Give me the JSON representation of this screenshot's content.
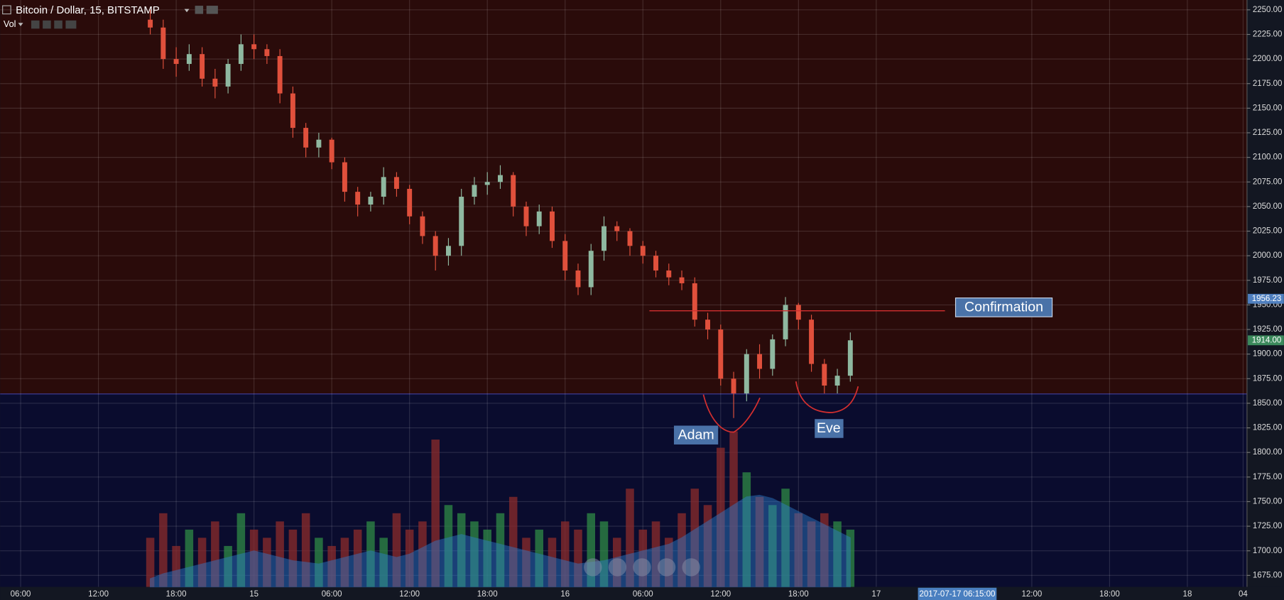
{
  "chart_data": {
    "type": "candlestick",
    "title": "Bitcoin / Dollar, 15, BITSTAMP",
    "volume_label": "Vol",
    "x": [
      16,
      17,
      18,
      19,
      20,
      21,
      22,
      23,
      24,
      25,
      26,
      27,
      28,
      29,
      30,
      31,
      32,
      33,
      34,
      35,
      36,
      37,
      38,
      39,
      40,
      41,
      42,
      43,
      44,
      45,
      46,
      47,
      48,
      49,
      50,
      51,
      52,
      53,
      54,
      55,
      56,
      57,
      58,
      59,
      60,
      61,
      62,
      63,
      64,
      65,
      66,
      67,
      68,
      69,
      70
    ],
    "open": [
      2240,
      2232,
      2200,
      2195,
      2205,
      2180,
      2172,
      2195,
      2215,
      2210,
      2203,
      2165,
      2130,
      2110,
      2118,
      2095,
      2065,
      2052,
      2060,
      2080,
      2068,
      2040,
      2020,
      2000,
      2010,
      2060,
      2072,
      2075,
      2082,
      2050,
      2030,
      2045,
      2015,
      1985,
      1968,
      2005,
      2030,
      2025,
      2010,
      2000,
      1985,
      1978,
      1972,
      1935,
      1925,
      1875,
      1860,
      1900,
      1885,
      1915,
      1950,
      1935,
      1890,
      1868,
      1878
    ],
    "high": [
      2250,
      2240,
      2212,
      2215,
      2212,
      2190,
      2200,
      2225,
      2225,
      2215,
      2210,
      2172,
      2135,
      2125,
      2120,
      2100,
      2070,
      2065,
      2090,
      2085,
      2072,
      2045,
      2025,
      2018,
      2068,
      2080,
      2085,
      2092,
      2085,
      2055,
      2052,
      2050,
      2022,
      1992,
      2012,
      2040,
      2035,
      2028,
      2015,
      2005,
      1992,
      1985,
      1978,
      1942,
      1930,
      1882,
      1905,
      1910,
      1920,
      1958,
      1952,
      1940,
      1895,
      1885,
      1922
    ],
    "low": [
      2225,
      2190,
      2182,
      2188,
      2172,
      2160,
      2165,
      2188,
      2200,
      2195,
      2155,
      2120,
      2100,
      2100,
      2088,
      2055,
      2040,
      2045,
      2052,
      2060,
      2032,
      2012,
      1985,
      1990,
      2000,
      2052,
      2062,
      2068,
      2040,
      2020,
      2022,
      2008,
      1975,
      1960,
      1960,
      1995,
      2015,
      2000,
      1992,
      1978,
      1970,
      1965,
      1928,
      1915,
      1868,
      1835,
      1852,
      1875,
      1878,
      1908,
      1925,
      1882,
      1860,
      1860,
      1872
    ],
    "close": [
      2232,
      2200,
      2195,
      2205,
      2180,
      2172,
      2195,
      2215,
      2210,
      2203,
      2165,
      2130,
      2110,
      2118,
      2095,
      2065,
      2052,
      2060,
      2080,
      2068,
      2040,
      2020,
      2000,
      2010,
      2060,
      2072,
      2075,
      2082,
      2050,
      2030,
      2045,
      2015,
      1985,
      1968,
      2005,
      2030,
      2025,
      2010,
      2000,
      1985,
      1978,
      1972,
      1935,
      1925,
      1875,
      1860,
      1900,
      1885,
      1915,
      1950,
      1935,
      1890,
      1868,
      1878,
      1914
    ],
    "volume": [
      30,
      45,
      25,
      35,
      30,
      40,
      25,
      45,
      35,
      30,
      40,
      35,
      45,
      30,
      25,
      30,
      35,
      40,
      30,
      45,
      35,
      40,
      90,
      50,
      45,
      40,
      35,
      45,
      55,
      30,
      35,
      30,
      40,
      35,
      45,
      40,
      30,
      60,
      35,
      40,
      30,
      45,
      60,
      50,
      85,
      95,
      70,
      55,
      50,
      60,
      45,
      40,
      45,
      40,
      35
    ],
    "volume_ma": [
      5,
      8,
      10,
      12,
      14,
      16,
      18,
      20,
      22,
      20,
      18,
      16,
      15,
      14,
      16,
      18,
      20,
      22,
      20,
      18,
      20,
      24,
      28,
      30,
      32,
      30,
      28,
      26,
      24,
      22,
      20,
      18,
      16,
      14,
      15,
      16,
      18,
      20,
      22,
      24,
      26,
      30,
      35,
      40,
      45,
      50,
      55,
      56,
      54,
      50,
      46,
      42,
      38,
      34,
      30
    ],
    "vlim": [
      0,
      100
    ],
    "up_color": "#8fb8a0",
    "down_color": "#e0503c",
    "volume_up_color": "#2f8a45",
    "volume_down_color": "#8c2b2b",
    "volume_ma_color": "#2f7fd0",
    "upper_bg": "#2a0b0a",
    "lower_bg": "#0a0c2e",
    "background_split": 1859.5,
    "grid": true,
    "xlim": [
      4.42,
      100.6
    ],
    "xticks": [
      {
        "value": 6,
        "label": "06:00"
      },
      {
        "value": 12,
        "label": "12:00"
      },
      {
        "value": 18,
        "label": "18:00"
      },
      {
        "value": 24,
        "label": "15"
      },
      {
        "value": 30,
        "label": "06:00"
      },
      {
        "value": 36,
        "label": "12:00"
      },
      {
        "value": 42,
        "label": "18:00"
      },
      {
        "value": 48,
        "label": "16"
      },
      {
        "value": 54,
        "label": "06:00"
      },
      {
        "value": 60,
        "label": "12:00"
      },
      {
        "value": 66,
        "label": "18:00"
      },
      {
        "value": 72,
        "label": "17"
      },
      {
        "value": 84,
        "label": "12:00"
      },
      {
        "value": 90,
        "label": "18:00"
      },
      {
        "value": 96,
        "label": "18"
      },
      {
        "value": 100.3,
        "label": "04"
      }
    ],
    "ylim": [
      1663.3,
      2260
    ],
    "yticks": [
      {
        "value": 1675,
        "label": "1675.00"
      },
      {
        "value": 1700,
        "label": "1700.00"
      },
      {
        "value": 1725,
        "label": "1725.00"
      },
      {
        "value": 1750,
        "label": "1750.00"
      },
      {
        "value": 1775,
        "label": "1775.00"
      },
      {
        "value": 1800,
        "label": "1800.00"
      },
      {
        "value": 1825,
        "label": "1825.00"
      },
      {
        "value": 1850,
        "label": "1850.00"
      },
      {
        "value": 1875,
        "label": "1875.00"
      },
      {
        "value": 1900,
        "label": "1900.00"
      },
      {
        "value": 1925,
        "label": "1925.00"
      },
      {
        "value": 1950,
        "label": "1950.00"
      },
      {
        "value": 1975,
        "label": "1975.00"
      },
      {
        "value": 2000,
        "label": "2000.00"
      },
      {
        "value": 2025,
        "label": "2025.00"
      },
      {
        "value": 2050,
        "label": "2050.00"
      },
      {
        "value": 2075,
        "label": "2075.00"
      },
      {
        "value": 2100,
        "label": "2100.00"
      },
      {
        "value": 2125,
        "label": "2125.00"
      },
      {
        "value": 2150,
        "label": "2150.00"
      },
      {
        "value": 2175,
        "label": "2175.00"
      },
      {
        "value": 2200,
        "label": "2200.00"
      },
      {
        "value": 2225,
        "label": "2225.00"
      },
      {
        "value": 2250,
        "label": "2250.00"
      }
    ],
    "price_labels": [
      {
        "value": 1956.23,
        "label": "1956.23",
        "color": "#4f7fbf"
      },
      {
        "value": 1914,
        "label": "1914.00",
        "color": "#3c8a5c"
      }
    ],
    "cursor_label": {
      "value": 78.25,
      "label": "2017-07-17 06:15:00"
    },
    "confirmation_line": {
      "y": 1944,
      "x": [
        54.5,
        77.3
      ],
      "color": "#d32f2f"
    },
    "annotations": {
      "confirmation": "Confirmation",
      "adam": "Adam",
      "eve": "Eve"
    }
  }
}
